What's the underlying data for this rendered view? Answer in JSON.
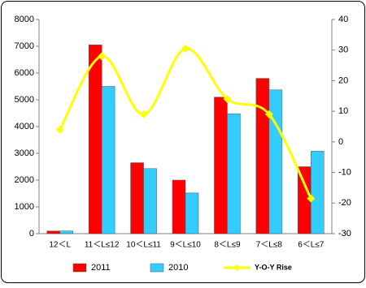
{
  "chart_data": {
    "type": "bar",
    "categories": [
      "12＜L",
      "11＜L≤12",
      "10＜L≤11",
      "9＜L≤10",
      "8＜L≤9",
      "7＜L≤8",
      "6＜L≤7"
    ],
    "series": [
      {
        "name": "2011",
        "color": "#ff0000",
        "values": [
          100,
          7050,
          2650,
          2000,
          5100,
          5800,
          2500
        ]
      },
      {
        "name": "2010",
        "color": "#33ccff",
        "values": [
          100,
          5500,
          2430,
          1520,
          4480,
          5370,
          3080
        ]
      },
      {
        "name": "Y-O-Y Rise",
        "color": "#ffff00",
        "axis": "y2",
        "type": "line",
        "values": [
          4,
          28,
          9,
          30.5,
          14,
          9,
          -18.5
        ]
      }
    ],
    "ylim": [
      0,
      8000
    ],
    "yticks": [
      0,
      1000,
      2000,
      3000,
      4000,
      5000,
      6000,
      7000,
      8000
    ],
    "y2lim": [
      -30,
      40
    ],
    "y2ticks": [
      -30,
      -20,
      -10,
      0,
      10,
      20,
      30,
      40
    ],
    "legend": "bottom"
  }
}
